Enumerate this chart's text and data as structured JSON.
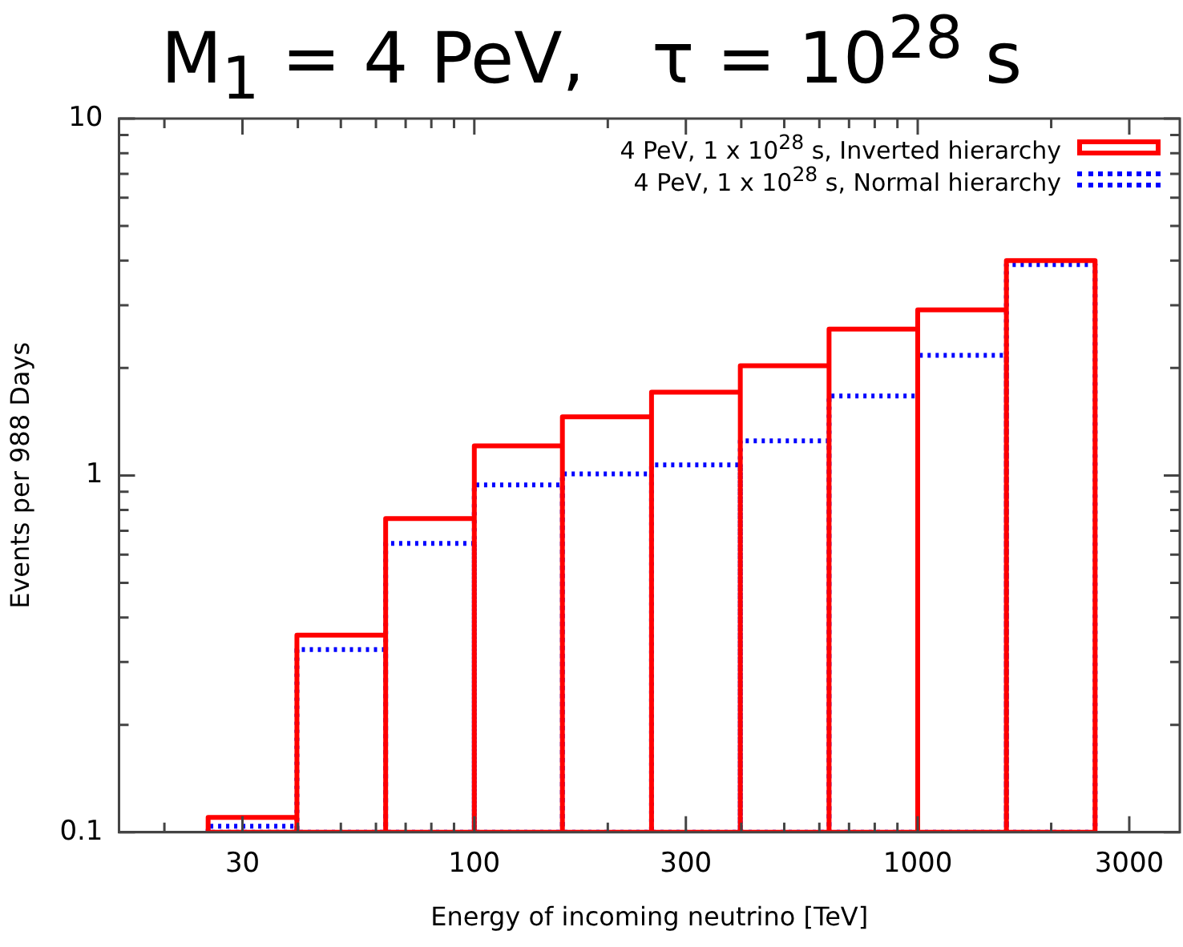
{
  "chart_data": {
    "type": "histogram",
    "title": "M$_{1}$ = 4 PeV,   τ = 10$^{28}$ s",
    "xlabel": "Energy of incoming neutrino [TeV]",
    "ylabel": "Events per 988 Days",
    "bins": [
      25.1,
      39.8,
      63.1,
      100,
      158,
      251,
      398,
      631,
      1000,
      1585,
      2512
    ],
    "series": [
      {
        "name": "4 PeV, 1 x 10$^{28}$ s, Inverted hierarchy",
        "color": "#ff0000",
        "line_style": "solid",
        "values": [
          0.11,
          0.357,
          0.757,
          1.21,
          1.46,
          1.71,
          2.03,
          2.57,
          2.91,
          4.0
        ]
      },
      {
        "name": "4 PeV, 1 x 10$^{28}$ s, Normal hierarchy",
        "color": "#0000ff",
        "line_style": "dotted",
        "values": [
          0.104,
          0.325,
          0.645,
          0.94,
          1.01,
          1.07,
          1.25,
          1.67,
          2.17,
          3.9
        ]
      }
    ],
    "log": "xy",
    "xlim": [
      15.8,
      3900
    ],
    "ylim": [
      0.1,
      10
    ],
    "xticks": [
      {
        "value": 20,
        "label": null
      },
      30,
      {
        "value": 40,
        "label": null
      },
      {
        "value": 50,
        "label": null
      },
      {
        "value": 60,
        "label": null
      },
      {
        "value": 70,
        "label": null
      },
      {
        "value": 80,
        "label": null
      },
      {
        "value": 90,
        "label": null
      },
      100,
      {
        "value": 200,
        "label": null
      },
      300,
      {
        "value": 400,
        "label": null
      },
      {
        "value": 500,
        "label": null
      },
      {
        "value": 600,
        "label": null
      },
      {
        "value": 700,
        "label": null
      },
      {
        "value": 800,
        "label": null
      },
      {
        "value": 900,
        "label": null
      },
      1000,
      {
        "value": 2000,
        "label": null
      },
      3000
    ],
    "yticks": [
      0.1,
      {
        "value": 0.2,
        "label": null
      },
      {
        "value": 0.3,
        "label": null
      },
      {
        "value": 0.4,
        "label": null
      },
      {
        "value": 0.5,
        "label": null
      },
      {
        "value": 0.6,
        "label": null
      },
      {
        "value": 0.7,
        "label": null
      },
      {
        "value": 0.8,
        "label": null
      },
      {
        "value": 0.9,
        "label": null
      },
      1,
      {
        "value": 2,
        "label": null
      },
      {
        "value": 3,
        "label": null
      },
      {
        "value": 4,
        "label": null
      },
      {
        "value": 5,
        "label": null
      },
      {
        "value": 6,
        "label": null
      },
      {
        "value": 7,
        "label": null
      },
      {
        "value": 8,
        "label": null
      },
      {
        "value": 9,
        "label": null
      },
      10
    ],
    "grid": false,
    "legend": "top right"
  }
}
